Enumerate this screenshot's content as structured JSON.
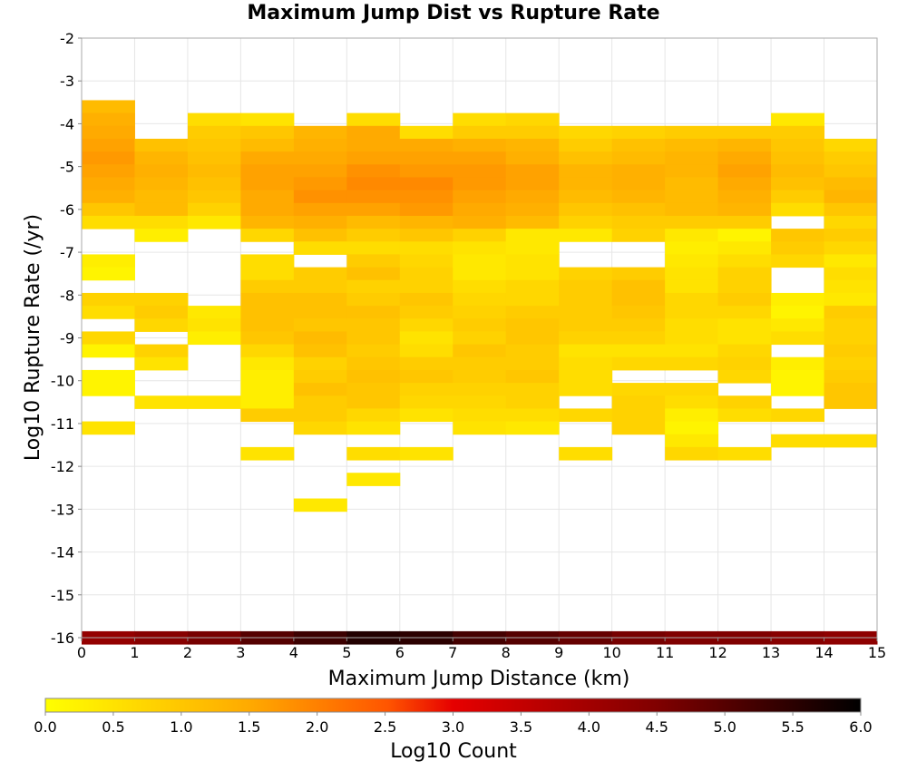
{
  "chart_data": {
    "type": "heatmap",
    "title": "Maximum Jump Dist vs Rupture Rate",
    "xlabel": "Maximum Jump Distance (km)",
    "ylabel": "Log10 Rupture Rate (/yr)",
    "xlim": [
      0,
      15
    ],
    "ylim": [
      -16,
      -2
    ],
    "x_ticks": [
      0,
      1,
      2,
      3,
      4,
      5,
      6,
      7,
      8,
      9,
      10,
      11,
      12,
      13,
      14,
      15
    ],
    "y_ticks": [
      -2,
      -3,
      -4,
      -5,
      -6,
      -7,
      -8,
      -9,
      -10,
      -11,
      -12,
      -13,
      -14,
      -15,
      -16
    ],
    "bin_width_x": 1,
    "bin_height_y": 0.3,
    "grid": true,
    "colorbar": {
      "label": "Log10 Count",
      "range": [
        0,
        6
      ],
      "ticks": [
        "0.0",
        "0.5",
        "1.0",
        "1.5",
        "2.0",
        "2.5",
        "3.0",
        "3.5",
        "4.0",
        "4.5",
        "5.0",
        "5.5",
        "6.0"
      ],
      "colors": [
        "#ffff00",
        "#ffaa00",
        "#ff5500",
        "#e60000",
        "#800000",
        "#000000"
      ]
    },
    "cells": [
      [
        0,
        -3.6,
        1.2
      ],
      [
        0,
        -3.9,
        1.4
      ],
      [
        0,
        -4.2,
        1.5
      ],
      [
        0,
        -4.5,
        1.6
      ],
      [
        0,
        -4.8,
        1.7
      ],
      [
        0,
        -5.1,
        1.6
      ],
      [
        0,
        -5.4,
        1.5
      ],
      [
        0,
        -5.7,
        1.4
      ],
      [
        0,
        -6.0,
        1.0
      ],
      [
        0,
        -6.3,
        0.6
      ],
      [
        0,
        -7.2,
        0.3
      ],
      [
        0,
        -7.5,
        0.2
      ],
      [
        0,
        -8.1,
        0.8
      ],
      [
        0,
        -8.4,
        0.6
      ],
      [
        0,
        -9.0,
        0.7
      ],
      [
        0,
        -9.3,
        0.2
      ],
      [
        0,
        -9.9,
        0.2
      ],
      [
        0,
        -10.2,
        0.2
      ],
      [
        0,
        -11.1,
        0.5
      ],
      [
        0,
        -16.0,
        4.2
      ],
      [
        1,
        -4.5,
        1.1
      ],
      [
        1,
        -4.8,
        1.3
      ],
      [
        1,
        -5.1,
        1.4
      ],
      [
        1,
        -5.4,
        1.3
      ],
      [
        1,
        -5.7,
        1.2
      ],
      [
        1,
        -6.0,
        1.2
      ],
      [
        1,
        -6.3,
        0.6
      ],
      [
        1,
        -6.6,
        0.3
      ],
      [
        1,
        -8.1,
        0.8
      ],
      [
        1,
        -8.4,
        0.9
      ],
      [
        1,
        -8.7,
        0.7
      ],
      [
        1,
        -9.3,
        0.8
      ],
      [
        1,
        -9.6,
        0.5
      ],
      [
        1,
        -10.5,
        0.5
      ],
      [
        1,
        -16.0,
        4.4
      ],
      [
        2,
        -3.9,
        0.6
      ],
      [
        2,
        -4.2,
        0.9
      ],
      [
        2,
        -4.5,
        1.0
      ],
      [
        2,
        -4.8,
        1.1
      ],
      [
        2,
        -5.1,
        1.2
      ],
      [
        2,
        -5.4,
        1.1
      ],
      [
        2,
        -5.7,
        1.0
      ],
      [
        2,
        -6.0,
        0.8
      ],
      [
        2,
        -6.3,
        0.4
      ],
      [
        2,
        -8.4,
        0.4
      ],
      [
        2,
        -8.7,
        0.5
      ],
      [
        2,
        -9.0,
        0.3
      ],
      [
        2,
        -10.5,
        0.5
      ],
      [
        2,
        -16.0,
        4.6
      ],
      [
        3,
        -3.9,
        0.5
      ],
      [
        3,
        -4.2,
        1.0
      ],
      [
        3,
        -4.5,
        1.2
      ],
      [
        3,
        -4.8,
        1.5
      ],
      [
        3,
        -5.1,
        1.6
      ],
      [
        3,
        -5.4,
        1.6
      ],
      [
        3,
        -5.7,
        1.5
      ],
      [
        3,
        -6.0,
        1.5
      ],
      [
        3,
        -6.3,
        1.3
      ],
      [
        3,
        -6.6,
        0.7
      ],
      [
        3,
        -7.2,
        0.6
      ],
      [
        3,
        -7.5,
        0.6
      ],
      [
        3,
        -7.8,
        0.9
      ],
      [
        3,
        -8.1,
        1.1
      ],
      [
        3,
        -8.4,
        1.1
      ],
      [
        3,
        -8.7,
        1.1
      ],
      [
        3,
        -9.0,
        1.0
      ],
      [
        3,
        -9.3,
        0.7
      ],
      [
        3,
        -9.6,
        0.4
      ],
      [
        3,
        -9.9,
        0.3
      ],
      [
        3,
        -10.2,
        0.3
      ],
      [
        3,
        -10.5,
        0.3
      ],
      [
        3,
        -10.8,
        0.9
      ],
      [
        3,
        -11.7,
        0.5
      ],
      [
        3,
        -16.0,
        5.0
      ],
      [
        4,
        -4.2,
        1.3
      ],
      [
        4,
        -4.5,
        1.4
      ],
      [
        4,
        -4.8,
        1.5
      ],
      [
        4,
        -5.1,
        1.6
      ],
      [
        4,
        -5.4,
        1.7
      ],
      [
        4,
        -5.7,
        1.8
      ],
      [
        4,
        -6.0,
        1.6
      ],
      [
        4,
        -6.3,
        1.4
      ],
      [
        4,
        -6.6,
        1.1
      ],
      [
        4,
        -6.9,
        0.6
      ],
      [
        4,
        -7.5,
        0.9
      ],
      [
        4,
        -7.8,
        0.9
      ],
      [
        4,
        -8.1,
        1.1
      ],
      [
        4,
        -8.4,
        1.1
      ],
      [
        4,
        -8.7,
        1.0
      ],
      [
        4,
        -9.0,
        1.2
      ],
      [
        4,
        -9.3,
        1.1
      ],
      [
        4,
        -9.6,
        0.8
      ],
      [
        4,
        -9.9,
        0.9
      ],
      [
        4,
        -10.2,
        1.1
      ],
      [
        4,
        -10.5,
        0.9
      ],
      [
        4,
        -10.8,
        0.9
      ],
      [
        4,
        -11.1,
        0.7
      ],
      [
        4,
        -12.9,
        0.4
      ],
      [
        4,
        -16.0,
        5.3
      ],
      [
        5,
        -3.9,
        0.6
      ],
      [
        5,
        -4.2,
        1.5
      ],
      [
        5,
        -4.5,
        1.5
      ],
      [
        5,
        -4.8,
        1.6
      ],
      [
        5,
        -5.1,
        1.8
      ],
      [
        5,
        -5.4,
        1.9
      ],
      [
        5,
        -5.7,
        1.8
      ],
      [
        5,
        -6.0,
        1.6
      ],
      [
        5,
        -6.3,
        1.2
      ],
      [
        5,
        -6.6,
        0.9
      ],
      [
        5,
        -6.9,
        0.6
      ],
      [
        5,
        -7.2,
        0.9
      ],
      [
        5,
        -7.5,
        1.1
      ],
      [
        5,
        -7.8,
        0.8
      ],
      [
        5,
        -8.1,
        0.9
      ],
      [
        5,
        -8.4,
        1.1
      ],
      [
        5,
        -8.7,
        1.0
      ],
      [
        5,
        -9.0,
        1.0
      ],
      [
        5,
        -9.3,
        0.9
      ],
      [
        5,
        -9.6,
        1.0
      ],
      [
        5,
        -9.9,
        1.1
      ],
      [
        5,
        -10.2,
        1.0
      ],
      [
        5,
        -10.5,
        1.0
      ],
      [
        5,
        -10.8,
        0.7
      ],
      [
        5,
        -11.1,
        0.5
      ],
      [
        5,
        -11.7,
        0.6
      ],
      [
        5,
        -12.3,
        0.4
      ],
      [
        5,
        -16.0,
        5.6
      ],
      [
        6,
        -4.2,
        0.6
      ],
      [
        6,
        -4.5,
        1.5
      ],
      [
        6,
        -4.8,
        1.6
      ],
      [
        6,
        -5.1,
        1.7
      ],
      [
        6,
        -5.4,
        1.9
      ],
      [
        6,
        -5.7,
        1.8
      ],
      [
        6,
        -6.0,
        1.7
      ],
      [
        6,
        -6.3,
        1.3
      ],
      [
        6,
        -6.6,
        1.0
      ],
      [
        6,
        -6.9,
        0.6
      ],
      [
        6,
        -7.2,
        0.7
      ],
      [
        6,
        -7.5,
        0.8
      ],
      [
        6,
        -7.8,
        0.8
      ],
      [
        6,
        -8.1,
        1.0
      ],
      [
        6,
        -8.4,
        0.9
      ],
      [
        6,
        -8.7,
        0.7
      ],
      [
        6,
        -9.0,
        0.5
      ],
      [
        6,
        -9.3,
        0.6
      ],
      [
        6,
        -9.6,
        0.9
      ],
      [
        6,
        -9.9,
        1.0
      ],
      [
        6,
        -10.2,
        0.8
      ],
      [
        6,
        -10.5,
        0.7
      ],
      [
        6,
        -10.8,
        0.5
      ],
      [
        6,
        -11.7,
        0.5
      ],
      [
        6,
        -16.0,
        5.5
      ],
      [
        7,
        -3.9,
        0.6
      ],
      [
        7,
        -4.2,
        0.9
      ],
      [
        7,
        -4.5,
        1.4
      ],
      [
        7,
        -4.8,
        1.6
      ],
      [
        7,
        -5.1,
        1.7
      ],
      [
        7,
        -5.4,
        1.7
      ],
      [
        7,
        -5.7,
        1.6
      ],
      [
        7,
        -6.0,
        1.5
      ],
      [
        7,
        -6.3,
        1.4
      ],
      [
        7,
        -6.6,
        0.8
      ],
      [
        7,
        -6.9,
        0.5
      ],
      [
        7,
        -7.2,
        0.4
      ],
      [
        7,
        -7.5,
        0.4
      ],
      [
        7,
        -7.8,
        0.6
      ],
      [
        7,
        -8.1,
        0.7
      ],
      [
        7,
        -8.4,
        0.8
      ],
      [
        7,
        -8.7,
        0.9
      ],
      [
        7,
        -9.0,
        0.8
      ],
      [
        7,
        -9.3,
        1.0
      ],
      [
        7,
        -9.6,
        0.9
      ],
      [
        7,
        -9.9,
        0.9
      ],
      [
        7,
        -10.2,
        0.8
      ],
      [
        7,
        -10.5,
        0.7
      ],
      [
        7,
        -10.8,
        0.6
      ],
      [
        7,
        -11.1,
        0.5
      ],
      [
        7,
        -16.0,
        5.2
      ],
      [
        8,
        -3.9,
        0.7
      ],
      [
        8,
        -4.2,
        0.9
      ],
      [
        8,
        -4.5,
        1.3
      ],
      [
        8,
        -4.8,
        1.4
      ],
      [
        8,
        -5.1,
        1.6
      ],
      [
        8,
        -5.4,
        1.6
      ],
      [
        8,
        -5.7,
        1.5
      ],
      [
        8,
        -6.0,
        1.4
      ],
      [
        8,
        -6.3,
        1.2
      ],
      [
        8,
        -6.6,
        0.4
      ],
      [
        8,
        -6.9,
        0.4
      ],
      [
        8,
        -7.2,
        0.5
      ],
      [
        8,
        -7.5,
        0.5
      ],
      [
        8,
        -7.8,
        0.7
      ],
      [
        8,
        -8.1,
        0.7
      ],
      [
        8,
        -8.4,
        0.9
      ],
      [
        8,
        -8.7,
        1.0
      ],
      [
        8,
        -9.0,
        1.0
      ],
      [
        8,
        -9.3,
        0.9
      ],
      [
        8,
        -9.6,
        0.9
      ],
      [
        8,
        -9.9,
        1.0
      ],
      [
        8,
        -10.2,
        0.8
      ],
      [
        8,
        -10.5,
        0.8
      ],
      [
        8,
        -10.8,
        0.6
      ],
      [
        8,
        -11.1,
        0.4
      ],
      [
        8,
        -16.0,
        5.0
      ],
      [
        9,
        -4.2,
        0.7
      ],
      [
        9,
        -4.5,
        0.9
      ],
      [
        9,
        -4.8,
        1.1
      ],
      [
        9,
        -5.1,
        1.3
      ],
      [
        9,
        -5.4,
        1.3
      ],
      [
        9,
        -5.7,
        1.2
      ],
      [
        9,
        -6.0,
        1.0
      ],
      [
        9,
        -6.3,
        0.8
      ],
      [
        9,
        -6.6,
        0.4
      ],
      [
        9,
        -7.5,
        0.8
      ],
      [
        9,
        -7.8,
        0.9
      ],
      [
        9,
        -8.1,
        0.9
      ],
      [
        9,
        -8.4,
        0.9
      ],
      [
        9,
        -8.7,
        0.9
      ],
      [
        9,
        -9.0,
        0.8
      ],
      [
        9,
        -9.3,
        0.5
      ],
      [
        9,
        -9.6,
        0.6
      ],
      [
        9,
        -9.9,
        0.6
      ],
      [
        9,
        -10.2,
        0.6
      ],
      [
        9,
        -10.8,
        0.7
      ],
      [
        9,
        -11.7,
        0.6
      ],
      [
        9,
        -16.0,
        4.8
      ],
      [
        10,
        -4.2,
        0.8
      ],
      [
        10,
        -4.5,
        1.1
      ],
      [
        10,
        -4.8,
        1.2
      ],
      [
        10,
        -5.1,
        1.4
      ],
      [
        10,
        -5.4,
        1.4
      ],
      [
        10,
        -5.7,
        1.3
      ],
      [
        10,
        -6.0,
        1.1
      ],
      [
        10,
        -6.3,
        0.9
      ],
      [
        10,
        -6.6,
        0.8
      ],
      [
        10,
        -7.5,
        0.9
      ],
      [
        10,
        -7.8,
        1.1
      ],
      [
        10,
        -8.1,
        1.1
      ],
      [
        10,
        -8.4,
        1.0
      ],
      [
        10,
        -8.7,
        0.9
      ],
      [
        10,
        -9.0,
        0.8
      ],
      [
        10,
        -9.3,
        0.5
      ],
      [
        10,
        -9.6,
        0.7
      ],
      [
        10,
        -10.2,
        0.7
      ],
      [
        10,
        -10.5,
        0.8
      ],
      [
        10,
        -10.8,
        0.8
      ],
      [
        10,
        -11.1,
        0.8
      ],
      [
        10,
        -16.0,
        4.6
      ],
      [
        11,
        -4.2,
        0.9
      ],
      [
        11,
        -4.5,
        1.2
      ],
      [
        11,
        -4.8,
        1.3
      ],
      [
        11,
        -5.1,
        1.3
      ],
      [
        11,
        -5.4,
        1.2
      ],
      [
        11,
        -5.7,
        1.2
      ],
      [
        11,
        -6.0,
        1.2
      ],
      [
        11,
        -6.3,
        0.9
      ],
      [
        11,
        -6.6,
        0.4
      ],
      [
        11,
        -6.9,
        0.3
      ],
      [
        11,
        -7.2,
        0.4
      ],
      [
        11,
        -7.5,
        0.5
      ],
      [
        11,
        -7.8,
        0.5
      ],
      [
        11,
        -8.1,
        0.7
      ],
      [
        11,
        -8.4,
        0.7
      ],
      [
        11,
        -8.7,
        0.6
      ],
      [
        11,
        -9.0,
        0.6
      ],
      [
        11,
        -9.3,
        0.5
      ],
      [
        11,
        -9.6,
        0.7
      ],
      [
        11,
        -10.2,
        0.7
      ],
      [
        11,
        -10.5,
        0.6
      ],
      [
        11,
        -10.8,
        0.3
      ],
      [
        11,
        -11.1,
        0.2
      ],
      [
        11,
        -11.4,
        0.4
      ],
      [
        11,
        -11.7,
        0.7
      ],
      [
        11,
        -16.0,
        4.5
      ],
      [
        12,
        -4.2,
        0.9
      ],
      [
        12,
        -4.5,
        1.3
      ],
      [
        12,
        -4.8,
        1.5
      ],
      [
        12,
        -5.1,
        1.6
      ],
      [
        12,
        -5.4,
        1.5
      ],
      [
        12,
        -5.7,
        1.4
      ],
      [
        12,
        -6.0,
        1.3
      ],
      [
        12,
        -6.3,
        0.9
      ],
      [
        12,
        -6.6,
        0.2
      ],
      [
        12,
        -6.9,
        0.4
      ],
      [
        12,
        -7.2,
        0.6
      ],
      [
        12,
        -7.5,
        0.8
      ],
      [
        12,
        -7.8,
        0.8
      ],
      [
        12,
        -8.1,
        0.9
      ],
      [
        12,
        -8.4,
        0.7
      ],
      [
        12,
        -8.7,
        0.5
      ],
      [
        12,
        -9.0,
        0.5
      ],
      [
        12,
        -9.3,
        0.7
      ],
      [
        12,
        -9.6,
        0.8
      ],
      [
        12,
        -9.9,
        0.7
      ],
      [
        12,
        -10.5,
        0.8
      ],
      [
        12,
        -10.8,
        0.6
      ],
      [
        12,
        -11.7,
        0.6
      ],
      [
        12,
        -16.0,
        4.5
      ],
      [
        13,
        -3.9,
        0.4
      ],
      [
        13,
        -4.2,
        0.9
      ],
      [
        13,
        -4.5,
        1.0
      ],
      [
        13,
        -4.8,
        1.1
      ],
      [
        13,
        -5.1,
        1.2
      ],
      [
        13,
        -5.4,
        1.1
      ],
      [
        13,
        -5.7,
        0.9
      ],
      [
        13,
        -6.0,
        0.6
      ],
      [
        13,
        -6.6,
        1.0
      ],
      [
        13,
        -6.9,
        0.9
      ],
      [
        13,
        -7.2,
        0.7
      ],
      [
        13,
        -8.1,
        0.3
      ],
      [
        13,
        -8.4,
        0.2
      ],
      [
        13,
        -8.7,
        0.4
      ],
      [
        13,
        -9.0,
        0.6
      ],
      [
        13,
        -9.6,
        0.3
      ],
      [
        13,
        -9.9,
        0.2
      ],
      [
        13,
        -10.2,
        0.2
      ],
      [
        13,
        -10.8,
        0.7
      ],
      [
        13,
        -11.4,
        0.6
      ],
      [
        13,
        -16.0,
        4.4
      ],
      [
        14,
        -4.5,
        0.7
      ],
      [
        14,
        -4.8,
        0.9
      ],
      [
        14,
        -5.1,
        1.0
      ],
      [
        14,
        -5.4,
        1.2
      ],
      [
        14,
        -5.7,
        1.3
      ],
      [
        14,
        -6.0,
        1.0
      ],
      [
        14,
        -6.3,
        0.7
      ],
      [
        14,
        -6.6,
        0.9
      ],
      [
        14,
        -6.9,
        0.7
      ],
      [
        14,
        -7.2,
        0.4
      ],
      [
        14,
        -7.5,
        0.6
      ],
      [
        14,
        -7.8,
        0.5
      ],
      [
        14,
        -8.1,
        0.4
      ],
      [
        14,
        -8.4,
        0.9
      ],
      [
        14,
        -8.7,
        0.8
      ],
      [
        14,
        -9.0,
        0.8
      ],
      [
        14,
        -9.3,
        0.9
      ],
      [
        14,
        -9.6,
        0.8
      ],
      [
        14,
        -9.9,
        0.9
      ],
      [
        14,
        -10.2,
        1.0
      ],
      [
        14,
        -10.5,
        1.0
      ],
      [
        14,
        -11.4,
        0.6
      ],
      [
        14,
        -16.0,
        4.3
      ]
    ]
  }
}
